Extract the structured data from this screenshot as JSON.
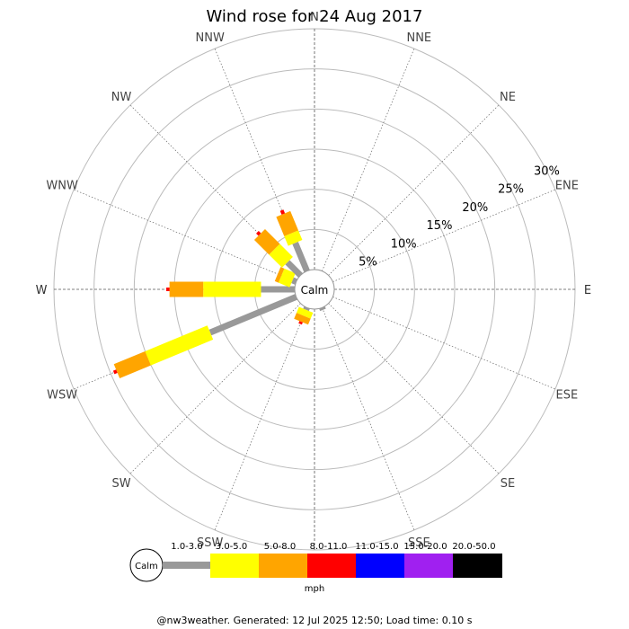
{
  "chart_data": {
    "type": "windrose",
    "title": "Wind rose for 24 Aug 2017",
    "directions": [
      "N",
      "NNE",
      "NE",
      "ENE",
      "E",
      "ESE",
      "SE",
      "SSE",
      "S",
      "SSW",
      "SW",
      "WSW",
      "W",
      "WNW",
      "NW",
      "NNW"
    ],
    "radial_ticks": [
      "5%",
      "10%",
      "15%",
      "20%",
      "25%",
      "30%"
    ],
    "radial_max": 30,
    "calm_label": "Calm",
    "speed_bins": [
      {
        "label": "1.0-3.0",
        "color": "#999999"
      },
      {
        "label": "3.0-5.0",
        "color": "#ffff00"
      },
      {
        "label": "5.0-8.0",
        "color": "#ffa500"
      },
      {
        "label": "8.0-11.0",
        "color": "#ff0000"
      },
      {
        "label": "11.0-15.0",
        "color": "#0000ff"
      },
      {
        "label": "15.0-20.0",
        "color": "#a020f0"
      },
      {
        "label": "20.0-50.0",
        "color": "#000000"
      }
    ],
    "units": "mph",
    "series_percent_by_direction": {
      "N": [
        0,
        0,
        0,
        0,
        0,
        0,
        0
      ],
      "NNE": [
        0,
        0,
        0,
        0,
        0,
        0,
        0
      ],
      "NE": [
        0,
        0,
        0,
        0,
        0,
        0,
        0
      ],
      "ENE": [
        0,
        0,
        0,
        0,
        0,
        0,
        0
      ],
      "E": [
        0,
        0,
        0,
        0,
        0,
        0,
        0
      ],
      "ESE": [
        0,
        0,
        0,
        0,
        0,
        0,
        0
      ],
      "SE": [
        0,
        0,
        0,
        0,
        0,
        0,
        0
      ],
      "SSE": [
        0.3,
        0,
        0,
        0,
        0,
        0,
        0
      ],
      "S": [
        0,
        0,
        0,
        0,
        0,
        0,
        0
      ],
      "SSW": [
        0.3,
        0.8,
        0.8,
        0.3,
        0,
        0,
        0
      ],
      "SW": [
        0,
        0,
        0,
        0,
        0,
        0,
        0
      ],
      "WSW": [
        11.6,
        8.4,
        4.2,
        0.4,
        0,
        0,
        0
      ],
      "W": [
        4.2,
        7.2,
        4.2,
        0.4,
        0,
        0,
        0
      ],
      "WNW": [
        0.5,
        1.5,
        0.5,
        0,
        0,
        0,
        0
      ],
      "NW": [
        2.3,
        2.3,
        2.6,
        0.4,
        0,
        0,
        0
      ],
      "NNW": [
        3.8,
        1.3,
        2.6,
        0.5,
        0,
        0,
        0
      ]
    }
  },
  "footer": "@nw3weather.  Generated: 12 Jul 2025 12:50; Load time: 0.10 s"
}
